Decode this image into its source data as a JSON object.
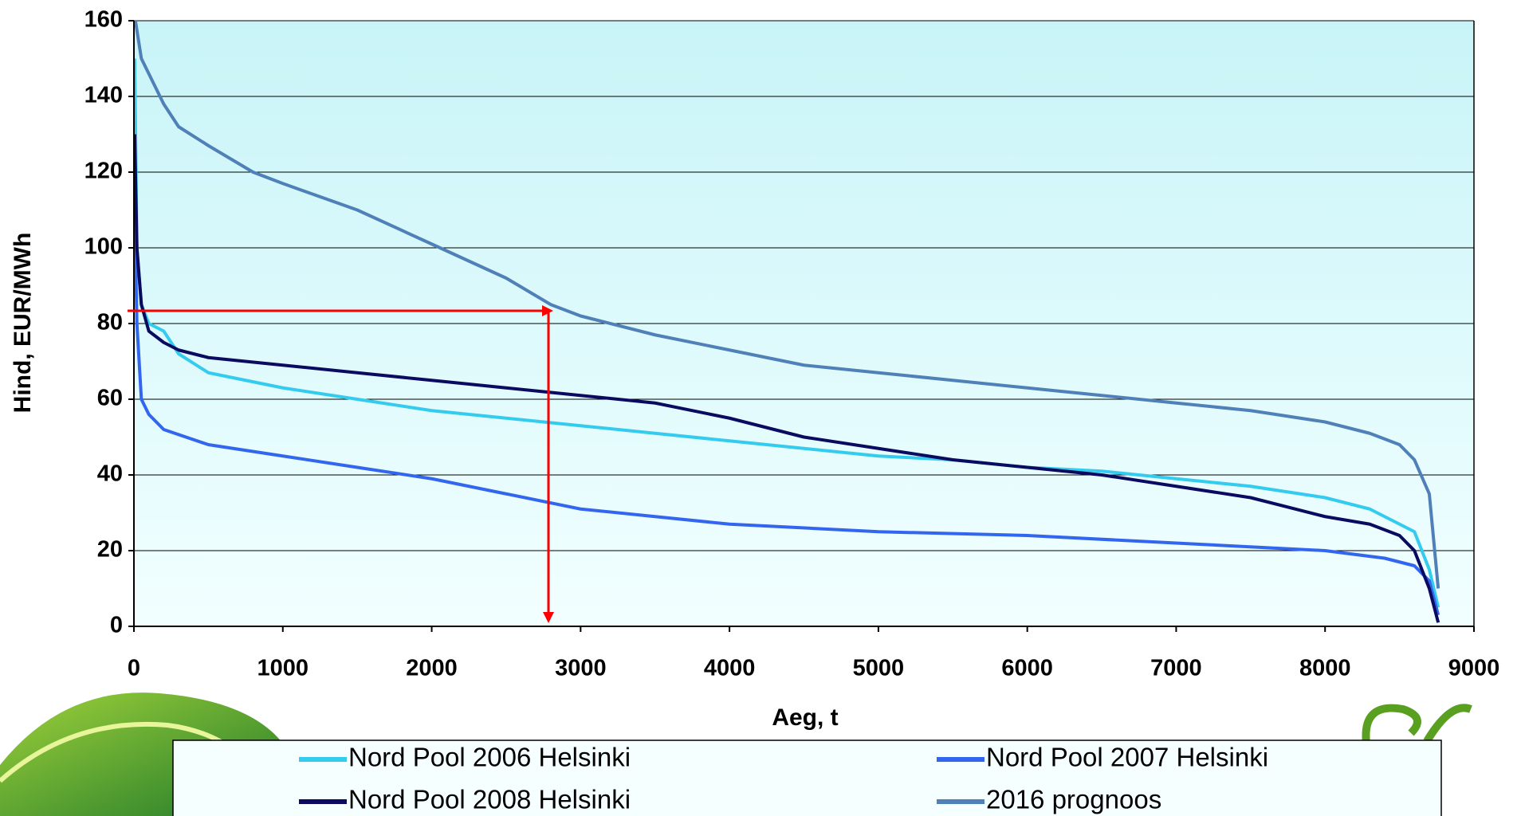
{
  "chart_data": {
    "type": "line",
    "xlabel": "Aeg, t",
    "ylabel": "Hind, EUR/MWh",
    "xlim": [
      0,
      9000
    ],
    "ylim": [
      0,
      160
    ],
    "xticks": [
      0,
      1000,
      2000,
      3000,
      4000,
      5000,
      6000,
      7000,
      8000,
      9000
    ],
    "yticks": [
      0,
      20,
      40,
      60,
      80,
      100,
      120,
      140,
      160
    ],
    "grid": true,
    "legend": "bottom",
    "series": [
      {
        "name": "Nord Pool 2006 Helsinki",
        "color": "#33ccee",
        "x": [
          5,
          20,
          50,
          100,
          200,
          300,
          500,
          1000,
          1500,
          2000,
          2500,
          3000,
          3500,
          4000,
          4500,
          5000,
          5500,
          6000,
          6500,
          7000,
          7500,
          8000,
          8300,
          8500,
          8600,
          8700,
          8760
        ],
        "values": [
          150,
          100,
          85,
          80,
          78,
          72,
          67,
          63,
          60,
          57,
          55,
          53,
          51,
          49,
          47,
          45,
          44,
          42,
          41,
          39,
          37,
          34,
          31,
          27,
          25,
          15,
          5
        ]
      },
      {
        "name": "Nord Pool 2007 Helsinki",
        "color": "#3366ee",
        "x": [
          5,
          20,
          50,
          100,
          200,
          500,
          1000,
          1500,
          2000,
          2500,
          3000,
          3500,
          4000,
          5000,
          6000,
          7000,
          8000,
          8400,
          8600,
          8700,
          8760
        ],
        "values": [
          110,
          80,
          60,
          56,
          52,
          48,
          45,
          42,
          39,
          35,
          31,
          29,
          27,
          25,
          24,
          22,
          20,
          18,
          16,
          12,
          3
        ]
      },
      {
        "name": "Nord Pool 2008 Helsinki",
        "color": "#0a0a60",
        "x": [
          5,
          20,
          50,
          100,
          200,
          300,
          500,
          1000,
          1500,
          2000,
          2500,
          3000,
          3500,
          4000,
          4500,
          5000,
          5500,
          6000,
          6500,
          7000,
          7500,
          8000,
          8300,
          8500,
          8600,
          8700,
          8760
        ],
        "values": [
          130,
          100,
          85,
          78,
          75,
          73,
          71,
          69,
          67,
          65,
          63,
          61,
          59,
          55,
          50,
          47,
          44,
          42,
          40,
          37,
          34,
          29,
          27,
          24,
          20,
          10,
          1
        ]
      },
      {
        "name": "2016 prognoos",
        "color": "#5080b8",
        "x": [
          10,
          50,
          200,
          300,
          500,
          800,
          1000,
          1500,
          2000,
          2500,
          2800,
          3000,
          3500,
          4000,
          4500,
          5000,
          5500,
          6000,
          6500,
          7000,
          7500,
          8000,
          8300,
          8500,
          8600,
          8700,
          8760
        ],
        "values": [
          160,
          150,
          138,
          132,
          127,
          120,
          117,
          110,
          101,
          92,
          85,
          82,
          77,
          73,
          69,
          67,
          65,
          63,
          61,
          59,
          57,
          54,
          51,
          48,
          44,
          35,
          10
        ]
      }
    ]
  }
}
